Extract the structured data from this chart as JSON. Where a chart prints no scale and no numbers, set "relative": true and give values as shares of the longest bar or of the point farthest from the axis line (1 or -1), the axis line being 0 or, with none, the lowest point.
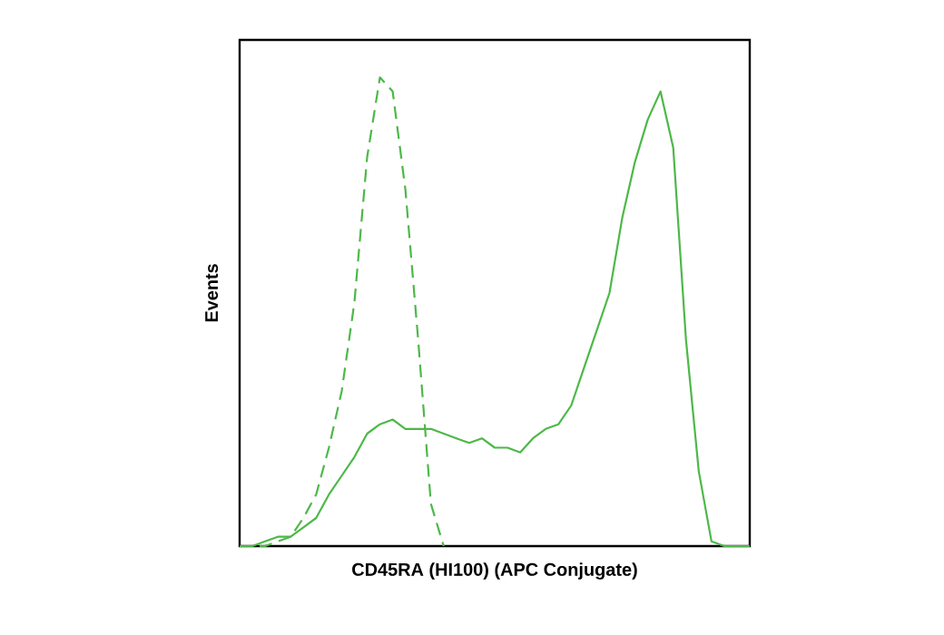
{
  "chart_data": {
    "type": "line",
    "relative": true,
    "xlabel": "CD45RA (HI100) (APC Conjugate)",
    "ylabel": "Events",
    "tick_labels": false,
    "marker": "none",
    "categories": [
      null,
      null,
      null,
      null,
      null,
      null,
      null,
      null,
      null,
      null,
      null,
      null,
      null,
      null,
      null,
      null,
      null,
      null,
      null,
      null,
      null,
      null,
      null,
      null,
      null,
      null,
      null,
      null,
      null,
      null,
      null,
      null,
      null,
      null,
      null,
      null,
      null,
      null,
      null,
      null,
      null
    ],
    "series": [
      {
        "color": "#4db848",
        "line_style": "dashed",
        "values": [
          0,
          0,
          0,
          0.01,
          0.02,
          0.06,
          0.11,
          0.21,
          0.33,
          0.52,
          0.83,
          1.0,
          0.97,
          0.76,
          0.44,
          0.09,
          0,
          null,
          null,
          null,
          null,
          null,
          null,
          null,
          null,
          null,
          null,
          null,
          null,
          null,
          null,
          null,
          null,
          null,
          null,
          null,
          null,
          null,
          null,
          null,
          null
        ]
      },
      {
        "color": "#4db848",
        "line_style": "solid",
        "values": [
          0,
          0,
          0.01,
          0.02,
          0.02,
          0.04,
          0.06,
          0.11,
          0.15,
          0.19,
          0.24,
          0.26,
          0.27,
          0.25,
          0.25,
          0.25,
          0.24,
          0.23,
          0.22,
          0.23,
          0.21,
          0.21,
          0.2,
          0.23,
          0.25,
          0.26,
          0.3,
          0.38,
          0.46,
          0.54,
          0.7,
          0.82,
          0.91,
          0.97,
          0.85,
          0.44,
          0.16,
          0.01,
          0,
          0,
          0
        ]
      }
    ]
  }
}
